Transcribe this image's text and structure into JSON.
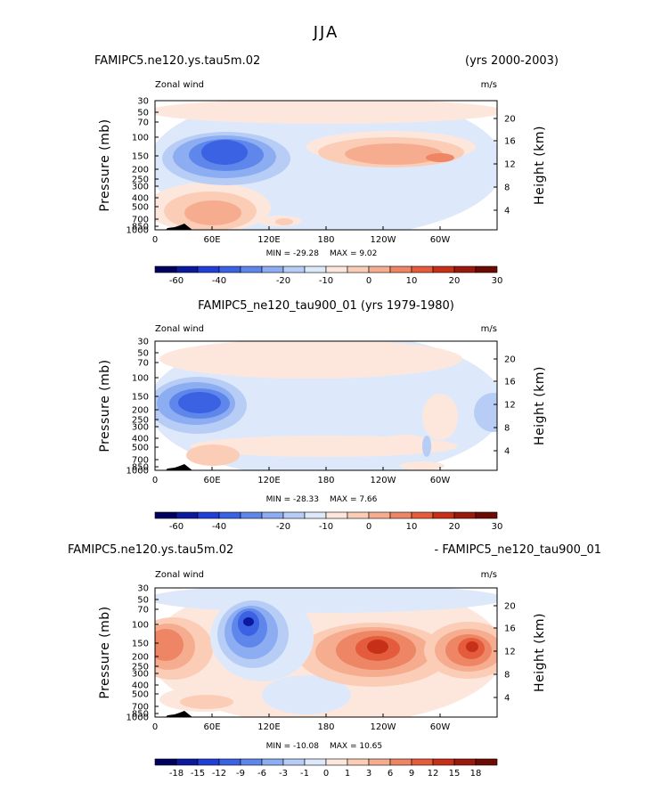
{
  "figure": {
    "title": "JJA",
    "colors": {
      "neg7": "#00005f",
      "neg6": "#0b1a9c",
      "neg5": "#1f3fd6",
      "neg4": "#3a62e3",
      "neg3": "#5f86ea",
      "neg2": "#8cadf2",
      "neg1": "#b7cdf6",
      "neg0": "#dde9fb",
      "pos0": "#fde7dd",
      "pos1": "#fbcdb7",
      "pos2": "#f6ad8f",
      "pos3": "#ee8565",
      "pos4": "#e45c3c",
      "pos5": "#c63018",
      "pos6": "#991a0c",
      "pos7": "#6e0a04"
    }
  },
  "chart_data": [
    {
      "type": "contour",
      "left_title": "FAMIPC5.ne120.ys.tau5m.02",
      "right_title": "(yrs 2000-2003)",
      "variable": "Zonal wind",
      "units": "m/s",
      "xlabel": "",
      "ylabel": "Pressure (mb)",
      "y2label": "Height (km)",
      "xticks": [
        "0",
        "60E",
        "120E",
        "180",
        "120W",
        "60W"
      ],
      "yticks": [
        "30",
        "50",
        "70",
        "100",
        "150",
        "200",
        "250",
        "300",
        "400",
        "500",
        "700",
        "850",
        "1000"
      ],
      "y2ticks": [
        "20",
        "16",
        "12",
        "8",
        "4"
      ],
      "min_label": "MIN = -29.28",
      "max_label": "MAX =   9.02",
      "colorbar_labels": [
        "-60",
        "-40",
        "-20",
        "-10",
        "0",
        "10",
        "20",
        "30"
      ],
      "contour_levels": [
        -70,
        -60,
        -50,
        -40,
        -30,
        -20,
        -15,
        -10,
        -5,
        0,
        5,
        10,
        15,
        20,
        25,
        30,
        35
      ]
    },
    {
      "type": "contour",
      "left_title": "FAMIPC5_ne120_tau900_01 (yrs 1979-1980)",
      "variable": "Zonal wind",
      "units": "m/s",
      "ylabel": "Pressure (mb)",
      "y2label": "Height (km)",
      "xticks": [
        "0",
        "60E",
        "120E",
        "180",
        "120W",
        "60W"
      ],
      "yticks": [
        "30",
        "50",
        "70",
        "100",
        "150",
        "200",
        "250",
        "300",
        "400",
        "500",
        "700",
        "850",
        "1000"
      ],
      "y2ticks": [
        "20",
        "16",
        "12",
        "8",
        "4"
      ],
      "min_label": "MIN = -28.33",
      "max_label": "MAX =   7.66",
      "colorbar_labels": [
        "-60",
        "-40",
        "-20",
        "-10",
        "0",
        "10",
        "20",
        "30"
      ],
      "contour_levels": [
        -70,
        -60,
        -50,
        -40,
        -30,
        -20,
        -15,
        -10,
        -5,
        0,
        5,
        10,
        15,
        20,
        25,
        30,
        35
      ]
    },
    {
      "type": "contour",
      "left_title": "FAMIPC5.ne120.ys.tau5m.02",
      "right_title": "- FAMIPC5_ne120_tau900_01",
      "variable": "Zonal wind",
      "units": "m/s",
      "ylabel": "Pressure (mb)",
      "y2label": "Height (km)",
      "xticks": [
        "0",
        "60E",
        "120E",
        "180",
        "120W",
        "60W"
      ],
      "yticks": [
        "30",
        "50",
        "70",
        "100",
        "150",
        "200",
        "250",
        "300",
        "400",
        "500",
        "700",
        "850",
        "1000"
      ],
      "y2ticks": [
        "20",
        "16",
        "12",
        "8",
        "4"
      ],
      "min_label": "MIN = -10.08",
      "max_label": "MAX =  10.65",
      "colorbar_labels": [
        "-18",
        "-15",
        "-12",
        "-9",
        "-6",
        "-3",
        "-1",
        "0",
        "1",
        "3",
        "6",
        "9",
        "12",
        "15",
        "18"
      ],
      "contour_levels": [
        -21,
        -18,
        -15,
        -12,
        -9,
        -6,
        -3,
        -1,
        0,
        1,
        3,
        6,
        9,
        12,
        15,
        18,
        21
      ]
    }
  ]
}
